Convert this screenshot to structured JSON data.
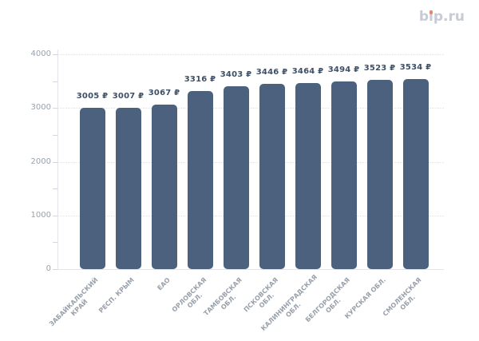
{
  "logo": {
    "text": "bip.ru",
    "dot_color": "#f0835e",
    "text_color": "#c7cbd7"
  },
  "chart_data": {
    "type": "bar",
    "title": "",
    "xlabel": "",
    "ylabel": "",
    "categories": [
      "ЗАБАЙКАЛЬСКИЙ КРАЙ",
      "РЕСП. КРЫМ",
      "ЕАО",
      "ОРЛОВСКАЯ ОБЛ.",
      "ТАМБОВСКАЯ ОБЛ.",
      "ПСКОВСКАЯ ОБЛ.",
      "КАЛИНИНГРАДСКАЯ ОБЛ.",
      "БЕЛГОРОДСКАЯ ОБЛ.",
      "КУРСКАЯ ОБЛ.",
      "СМОЛЕНСКАЯ ОБЛ."
    ],
    "category_display_lines": [
      [
        "ЗАБАЙКАЛЬСКИЙ",
        "КРАЙ"
      ],
      [
        "РЕСП. КРЫМ"
      ],
      [
        "ЕАО"
      ],
      [
        "ОРЛОВСКАЯ",
        "ОБЛ."
      ],
      [
        "ТАМБОВСКАЯ",
        "ОБЛ."
      ],
      [
        "ПСКОВСКАЯ",
        "ОБЛ."
      ],
      [
        "КАЛИНИНГРАДСКАЯ",
        "ОБЛ."
      ],
      [
        "БЕЛГОРОДСКАЯ",
        "ОБЛ."
      ],
      [
        "КУРСКАЯ ОБЛ."
      ],
      [
        "СМОЛЕНСКАЯ",
        "ОБЛ."
      ]
    ],
    "values": [
      3005,
      3007,
      3067,
      3316,
      3403,
      3446,
      3464,
      3494,
      3523,
      3534
    ],
    "value_labels": [
      "3005 ₽",
      "3007 ₽",
      "3067 ₽",
      "3316 ₽",
      "3403 ₽",
      "3446 ₽",
      "3464 ₽",
      "3494 ₽",
      "3523 ₽",
      "3534 ₽"
    ],
    "currency_symbol": "₽",
    "ylim": [
      0,
      4000
    ],
    "yticks": [
      0,
      1000,
      2000,
      3000,
      4000
    ],
    "ytick_labels": [
      "0",
      "1000",
      "2000",
      "3000",
      "4000"
    ],
    "minor_tick_interval": 500,
    "grid": {
      "horizontal": true,
      "style": "dotted"
    },
    "legend": {
      "visible": false
    },
    "colors": {
      "bar": "#4b617e",
      "value_label": "#3e5066",
      "axis_label": "#9aa1ac",
      "category_label": "#98a0aa",
      "grid": "#e0e2e8",
      "axis": "#e3e5ea"
    }
  }
}
